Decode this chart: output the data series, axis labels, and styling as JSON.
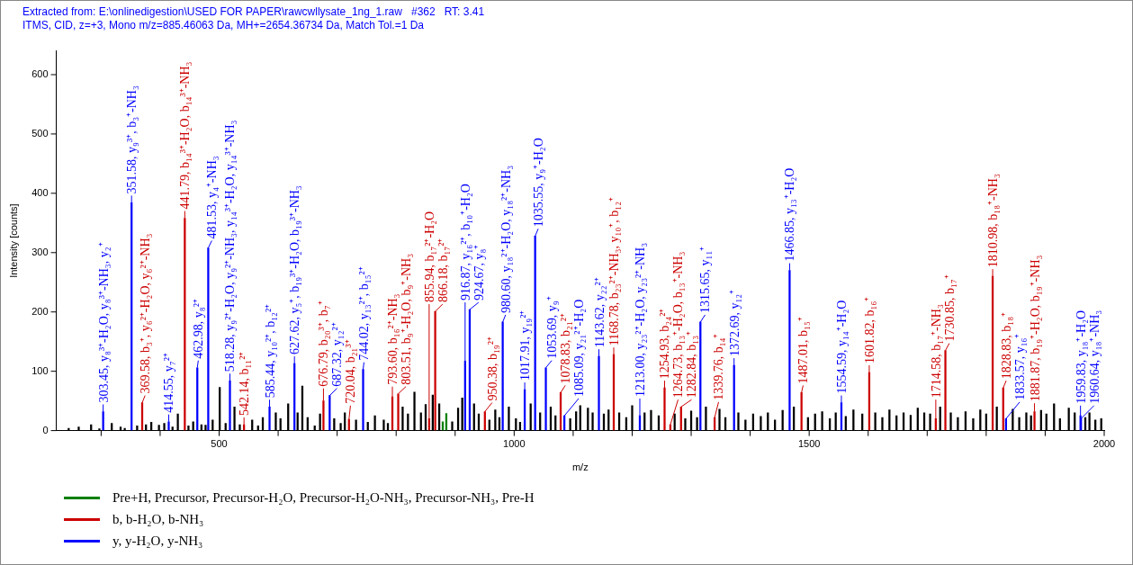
{
  "chart_data": {
    "type": "bar",
    "title": "Extracted from: E:\\onlinedigestion\\USED FOR PAPER\\rawcwllysate_1ng_1.raw   #362   RT: 3.41",
    "subtitle": "ITMS, CID, z=+3, Mono m/z=885.46063 Da, MH+=2654.36734 Da, Match Tol.=1 Da",
    "xlabel": "m/z",
    "ylabel": "Intensity [counts]",
    "xlim": [
      224,
      2000
    ],
    "ylim": [
      0,
      640
    ],
    "xticks": [
      {
        "value": 300,
        "label": null
      },
      {
        "value": 400,
        "label": null
      },
      500,
      {
        "value": 600,
        "label": null
      },
      {
        "value": 700,
        "label": null
      },
      {
        "value": 800,
        "label": null
      },
      {
        "value": 900,
        "label": null
      },
      1000,
      {
        "value": 1100,
        "label": null
      },
      {
        "value": 1200,
        "label": null
      },
      {
        "value": 1300,
        "label": null
      },
      {
        "value": 1400,
        "label": null
      },
      1500,
      {
        "value": 1600,
        "label": null
      },
      {
        "value": 1700,
        "label": null
      },
      {
        "value": 1800,
        "label": null
      },
      {
        "value": 1900,
        "label": null
      },
      2000
    ],
    "yticks": [
      0,
      100,
      200,
      300,
      400,
      500,
      600
    ],
    "grid": false,
    "legend": "bottom left",
    "series": [
      {
        "name": "Pre+H, Precursor, Precursor-H₂O, Precursor-H₂O-NH₃, Precursor-NH₃, Pre-H",
        "color": "#008000",
        "x": [
          879,
          885
        ],
        "values": [
          15,
          29
        ]
      },
      {
        "name": "b, b-H₂O, b-NH₃",
        "color": "#cc0000",
        "x": [
          369.58,
          441.79,
          542.14,
          676.79,
          720.04,
          793.6,
          803.51,
          855.94,
          866.18,
          950.38,
          1078.83,
          1168.78,
          1254.93,
          1264.73,
          1282.84,
          1339.76,
          1487.01,
          1601.82,
          1714.58,
          1730.85,
          1810.98,
          1828.83,
          1881.87
        ],
        "values": [
          47,
          358,
          10,
          50,
          19,
          57,
          62,
          20,
          201,
          32,
          64,
          128,
          72,
          10,
          40,
          22,
          64,
          98,
          20,
          135,
          260,
          72,
          32
        ]
      },
      {
        "name": "y, y-H₂O, y-NH₃",
        "color": "#0000ff",
        "x": [
          303.45,
          351.58,
          414.55,
          462.98,
          481.53,
          518.28,
          585.44,
          627.62,
          687.32,
          744.02,
          916.87,
          924.67,
          980.6,
          1017.91,
          1035.55,
          1053.69,
          1085.09,
          1143.62,
          1213.0,
          1315.65,
          1372.69,
          1466.85,
          1554.59,
          1833.57,
          1959.83,
          1960.64
        ],
        "values": [
          32,
          384,
          15,
          106,
          308,
          84,
          40,
          113,
          59,
          103,
          117,
          204,
          183,
          69,
          328,
          106,
          25,
          125,
          25,
          183,
          110,
          270,
          47,
          20,
          25,
          20
        ]
      },
      {
        "color": "#000000",
        "x": [
          245,
          262,
          283,
          297,
          318,
          333,
          340,
          361,
          376,
          385,
          398,
          407,
          421,
          430,
          448,
          456,
          470,
          477,
          489,
          501,
          511,
          526,
          535,
          556,
          566,
          574,
          596,
          604,
          617,
          633,
          641,
          650,
          662,
          671,
          695,
          706,
          713,
          732,
          752,
          764,
          779,
          786,
          811,
          820,
          831,
          842,
          850,
          862,
          873,
          895,
          905,
          912,
          932,
          940,
          958,
          968,
          975,
          991,
          1003,
          1010,
          1028,
          1044,
          1062,
          1070,
          1095,
          1105,
          1112,
          1125,
          1133,
          1152,
          1160,
          1178,
          1190,
          1200,
          1221,
          1232,
          1245,
          1272,
          1290,
          1300,
          1310,
          1325,
          1348,
          1358,
          1380,
          1392,
          1405,
          1418,
          1430,
          1442,
          1455,
          1474,
          1498,
          1510,
          1522,
          1535,
          1545,
          1562,
          1575,
          1590,
          1612,
          1624,
          1636,
          1648,
          1660,
          1672,
          1684,
          1695,
          1705,
          1722,
          1740,
          1752,
          1765,
          1778,
          1790,
          1800,
          1818,
          1845,
          1856,
          1868,
          1876,
          1893,
          1902,
          1915,
          1925,
          1940,
          1950,
          1968,
          1975,
          1985,
          1995
        ],
        "values": [
          4,
          6,
          10,
          3,
          12,
          6,
          4,
          8,
          10,
          14,
          9,
          12,
          6,
          28,
          8,
          15,
          10,
          9,
          18,
          73,
          12,
          40,
          10,
          18,
          8,
          22,
          30,
          20,
          45,
          30,
          75,
          22,
          8,
          28,
          20,
          12,
          30,
          18,
          14,
          25,
          18,
          12,
          40,
          28,
          65,
          30,
          44,
          60,
          45,
          15,
          38,
          55,
          45,
          28,
          18,
          35,
          22,
          40,
          20,
          14,
          45,
          30,
          40,
          25,
          20,
          32,
          42,
          38,
          30,
          28,
          35,
          30,
          22,
          42,
          30,
          34,
          25,
          28,
          20,
          33,
          22,
          40,
          36,
          22,
          30,
          18,
          28,
          24,
          30,
          18,
          34,
          40,
          22,
          28,
          32,
          20,
          30,
          24,
          35,
          28,
          30,
          22,
          35,
          25,
          30,
          26,
          38,
          30,
          28,
          40,
          30,
          22,
          32,
          20,
          35,
          28,
          40,
          36,
          22,
          30,
          25,
          34,
          28,
          45,
          20,
          38,
          30,
          22,
          30,
          18,
          20
        ]
      }
    ],
    "annotations": [
      {
        "text": "303.45, y₈³⁺-H₂O, y₈³⁺-NH₃, y₂⁺",
        "x": 303.45,
        "y": 32
      },
      {
        "text": "351.58, y₉³⁺, b₃⁺-NH₃",
        "x": 351.58,
        "y": 384
      },
      {
        "text": "369.58, b₃⁺, y₆²⁺-H₂O, y₆²⁺-NH₃",
        "x": 369.58,
        "y": 47
      },
      {
        "text": "414.55, y₇²⁺",
        "x": 414.55,
        "y": 15
      },
      {
        "text": "441.79, b₁₄³⁺-H₂O, b₁₄³⁺-NH₃",
        "x": 441.79,
        "y": 358
      },
      {
        "text": "462.98, y₈²⁺",
        "x": 462.98,
        "y": 106
      },
      {
        "text": "481.53, y₄⁺-NH₃",
        "x": 481.53,
        "y": 308
      },
      {
        "text": "518.28, y₉²⁺-H₂O, y₉²⁺-NH₃, y₁₄³⁺-H₂O, y₁₄³⁺-NH₃",
        "x": 518.28,
        "y": 84
      },
      {
        "text": "542.14, b₁₁²⁺",
        "x": 542.14,
        "y": 10
      },
      {
        "text": "585.44, y₁₀²⁺, b₁₂²⁺",
        "x": 585.44,
        "y": 40
      },
      {
        "text": "627.62, y₅⁺, b₁₉³⁺-H₂O, b₁₉³⁺-NH₃",
        "x": 627.62,
        "y": 113
      },
      {
        "text": "676.79, b₂₀³⁺, b₇⁺",
        "x": 676.79,
        "y": 50
      },
      {
        "text": "687.32, y₁₂²⁺",
        "x": 687.32,
        "y": 59
      },
      {
        "text": "720.04, b₂₁³⁺",
        "x": 720.04,
        "y": 19
      },
      {
        "text": "744.02, y₁₃²⁺, b₁₅²⁺",
        "x": 744.02,
        "y": 103
      },
      {
        "text": "793.60, b₁₆²⁺-NH₃",
        "x": 793.6,
        "y": 57
      },
      {
        "text": "803.51, b₉⁺-H₂O, b₉⁺-NH₃",
        "x": 803.51,
        "y": 62
      },
      {
        "text": "855.94, b₁₇²⁺-H₂O",
        "x": 855.94,
        "y": 20
      },
      {
        "text": "866.18, b₁₇²⁺",
        "x": 866.18,
        "y": 201
      },
      {
        "text": "916.87, y₁₆²⁺, b₁₀⁺-H₂O",
        "x": 916.87,
        "y": 117
      },
      {
        "text": "924.67, y₈⁺",
        "x": 924.67,
        "y": 204
      },
      {
        "text": "950.38, b₁₉²⁺",
        "x": 950.38,
        "y": 32
      },
      {
        "text": "980.60, y₁₈²⁺-H₂O, y₁₈²⁺-NH₃",
        "x": 980.6,
        "y": 183
      },
      {
        "text": "1017.91, y₁₉²⁺",
        "x": 1017.91,
        "y": 69
      },
      {
        "text": "1035.55, y₉⁺-H₂O",
        "x": 1035.55,
        "y": 328
      },
      {
        "text": "1053.69, y₉⁺",
        "x": 1053.69,
        "y": 106
      },
      {
        "text": "1078.83, b₂₁²⁺",
        "x": 1078.83,
        "y": 64
      },
      {
        "text": "1085.09, y₂₁²⁺-H₂O",
        "x": 1085.09,
        "y": 25
      },
      {
        "text": "1143.62, y₂₂²⁺",
        "x": 1143.62,
        "y": 125
      },
      {
        "text": "1168.78, b₂₃²⁺-NH₃, y₁₀⁺, b₁₂⁺",
        "x": 1168.78,
        "y": 128
      },
      {
        "text": "1213.00, y₂₃²⁺-H₂O, y₂₃²⁺-NH₃",
        "x": 1213.0,
        "y": 25
      },
      {
        "text": "1254.93, b₂₄²⁺",
        "x": 1254.93,
        "y": 72
      },
      {
        "text": "1264.73, b₁₃⁺-H₂O, b₁₃⁺-NH₃",
        "x": 1264.73,
        "y": 10
      },
      {
        "text": "1282.84, b₁₃⁺",
        "x": 1282.84,
        "y": 40
      },
      {
        "text": "1315.65, y₁₁⁺",
        "x": 1315.65,
        "y": 183
      },
      {
        "text": "1339.76, b₁₄⁺",
        "x": 1339.76,
        "y": 22
      },
      {
        "text": "1372.69, y₁₂⁺",
        "x": 1372.69,
        "y": 110
      },
      {
        "text": "1466.85, y₁₃⁺-H₂O",
        "x": 1466.85,
        "y": 270
      },
      {
        "text": "1487.01, b₁₅⁺",
        "x": 1487.01,
        "y": 64
      },
      {
        "text": "1554.59, y₁₄⁺-H₂O",
        "x": 1554.59,
        "y": 47
      },
      {
        "text": "1601.82, b₁₆⁺",
        "x": 1601.82,
        "y": 98
      },
      {
        "text": "1714.58, b₁₇⁺-NH₃",
        "x": 1714.58,
        "y": 20
      },
      {
        "text": "1730.85, b₁₇⁺",
        "x": 1730.85,
        "y": 135
      },
      {
        "text": "1810.98, b₁₈⁺-NH₃",
        "x": 1810.98,
        "y": 260
      },
      {
        "text": "1828.83, b₁₈⁺",
        "x": 1828.83,
        "y": 72
      },
      {
        "text": "1833.57, y₁₆⁺",
        "x": 1833.57,
        "y": 20
      },
      {
        "text": "1881.87, b₁₉⁺-H₂O, b₁₉⁺-NH₃",
        "x": 1881.87,
        "y": 32
      },
      {
        "text": "1959.83, y₁₈⁺-H₂O",
        "x": 1959.83,
        "y": 25
      },
      {
        "text": "1960.64, y₁₈⁺-NH₃",
        "x": 1960.64,
        "y": 20
      }
    ]
  }
}
